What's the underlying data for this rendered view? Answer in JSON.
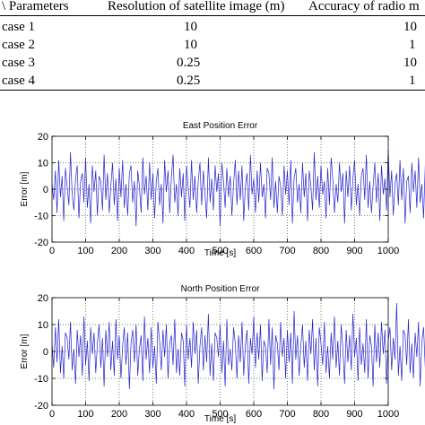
{
  "table": {
    "headers": [
      "\\ Parameters",
      "Resolution of satellite image (m)",
      "Accuracy of radio m"
    ],
    "rows": [
      [
        "case 1",
        "10",
        "10"
      ],
      [
        "case 2",
        "10",
        "1"
      ],
      [
        "case 3",
        "0.25",
        "10"
      ],
      [
        "case 4",
        "0.25",
        "1"
      ]
    ]
  },
  "chart_data": [
    {
      "type": "line",
      "title": "East Position Error",
      "xlabel": "Time [s]",
      "ylabel": "Error [m]",
      "xlim": [
        0,
        1000
      ],
      "ylim": [
        -20,
        20
      ],
      "xticks": [
        0,
        100,
        200,
        300,
        400,
        500,
        600,
        700,
        800,
        900,
        1000
      ],
      "yticks": [
        -20,
        -10,
        0,
        10,
        20
      ],
      "grid": true,
      "series": [
        {
          "color": "#2222cc",
          "x_step": 5,
          "values": [
            2,
            -4,
            7,
            -9,
            11,
            -3,
            5,
            -12,
            8,
            1,
            -6,
            14,
            -2,
            -8,
            4,
            9,
            -11,
            3,
            6,
            -5,
            12,
            -7,
            2,
            -13,
            9,
            -1,
            7,
            -10,
            5,
            3,
            -8,
            13,
            -4,
            6,
            -9,
            1,
            10,
            -6,
            4,
            -12,
            8,
            -3,
            11,
            -7,
            2,
            -10,
            6,
            9,
            -5,
            3,
            -14,
            7,
            1,
            -9,
            12,
            -2,
            5,
            -8,
            10,
            -4,
            6,
            -11,
            3,
            8,
            -6,
            2,
            -13,
            11,
            -1,
            7,
            -9,
            4,
            13,
            -5,
            2,
            -10,
            8,
            -3,
            6,
            -12,
            9,
            1,
            -7,
            11,
            -4,
            5,
            -9,
            3,
            10,
            -6,
            7,
            -2,
            -11,
            12,
            -5,
            4,
            -8,
            9,
            -1,
            6,
            -14,
            10,
            3,
            -7,
            8,
            -3,
            5,
            -10,
            2,
            11,
            -6,
            7,
            -4,
            9,
            -12,
            1,
            6,
            -8,
            13,
            -2,
            4,
            -9,
            7,
            -5,
            10,
            -3,
            2,
            -11,
            8,
            6,
            -4,
            12,
            -7,
            3,
            -9,
            5,
            1,
            -10,
            9,
            -2,
            7,
            -6,
            11,
            -13,
            4,
            8,
            -5,
            2,
            -9,
            10,
            -3,
            6,
            -12,
            7,
            1,
            -8,
            14,
            -4,
            5,
            -7,
            9,
            -2,
            3,
            -11,
            8,
            -6,
            12,
            4,
            -9,
            2,
            -5,
            10,
            -1,
            6,
            -13,
            7,
            -3,
            9,
            -8,
            4,
            11,
            -6,
            2,
            -10,
            5,
            8,
            -4,
            13,
            -7,
            3,
            -9,
            1,
            10,
            -5,
            6,
            -12,
            9,
            -2,
            4,
            -8,
            15,
            -3,
            7,
            -10,
            2,
            6,
            -6,
            11,
            -4,
            8,
            -13,
            3,
            5,
            -9,
            10,
            -1,
            7,
            -7,
            12,
            -5,
            2,
            -11,
            9,
            4,
            -3,
            8,
            -12,
            6,
            -2,
            10,
            -8,
            5,
            3,
            -14,
            11,
            -4,
            7,
            -6,
            9,
            -1,
            4,
            -10,
            12,
            -5,
            2
          ]
        }
      ]
    },
    {
      "type": "line",
      "title": "North Position Error",
      "xlabel": "Time [s]",
      "ylabel": "Error [m]",
      "xlim": [
        0,
        1000
      ],
      "ylim": [
        -20,
        20
      ],
      "xticks": [
        0,
        100,
        200,
        300,
        400,
        500,
        600,
        700,
        800,
        900,
        1000
      ],
      "yticks": [
        -20,
        -10,
        0,
        10,
        20
      ],
      "grid": true,
      "series": [
        {
          "color": "#2222cc",
          "x_step": 5,
          "values": [
            3,
            -6,
            9,
            -4,
            12,
            -8,
            2,
            -10,
            7,
            5,
            -3,
            11,
            -7,
            1,
            -12,
            8,
            -2,
            6,
            -9,
            13,
            -5,
            4,
            -11,
            9,
            -1,
            7,
            -8,
            3,
            10,
            -6,
            5,
            -13,
            8,
            -2,
            11,
            -7,
            4,
            -9,
            12,
            -3,
            6,
            -10,
            2,
            9,
            -5,
            7,
            -14,
            3,
            8,
            -4,
            10,
            -9,
            1,
            6,
            -11,
            13,
            -3,
            5,
            -8,
            9,
            -6,
            2,
            -12,
            11,
            4,
            -7,
            8,
            -2,
            10,
            -10,
            3,
            6,
            -5,
            12,
            -8,
            1,
            -9,
            7,
            4,
            -13,
            10,
            -3,
            5,
            -6,
            11,
            -1,
            8,
            -12,
            2,
            9,
            -7,
            6,
            -4,
            14,
            -9,
            3,
            -11,
            7,
            5,
            -2,
            10,
            -8,
            4,
            -13,
            12,
            -5,
            1,
            -7,
            9,
            3,
            -10,
            6,
            -4,
            11,
            -9,
            2,
            8,
            -12,
            5,
            -1,
            13,
            -6,
            7,
            -3,
            10,
            -11,
            4,
            2,
            -8,
            12,
            -5,
            9,
            -14,
            6,
            3,
            -7,
            11,
            -2,
            5,
            -10,
            8,
            -4,
            7,
            -12,
            15,
            -3,
            6,
            -9,
            2,
            10,
            -6,
            4,
            -11,
            8,
            -1,
            12,
            -7,
            5,
            -13,
            9,
            3,
            -5,
            11,
            -8,
            2,
            -10,
            7,
            -3,
            13,
            -6,
            4,
            -9,
            10,
            1,
            -12,
            8,
            -4,
            6,
            -7,
            14,
            -2,
            5,
            -11,
            9,
            -5,
            3,
            -8,
            12,
            -10,
            6,
            2,
            -13,
            10,
            -4,
            7,
            -6,
            11,
            -1,
            8,
            -12,
            4,
            9,
            -7,
            5,
            -3,
            18,
            -9,
            2,
            -11,
            8,
            6,
            -5,
            12,
            -8,
            3,
            -10,
            7,
            -2,
            11,
            -13,
            4,
            9,
            -6,
            5,
            -9,
            13,
            -3,
            7,
            -11,
            2,
            10,
            -7,
            6,
            -4,
            12,
            -10
          ]
        }
      ]
    }
  ]
}
